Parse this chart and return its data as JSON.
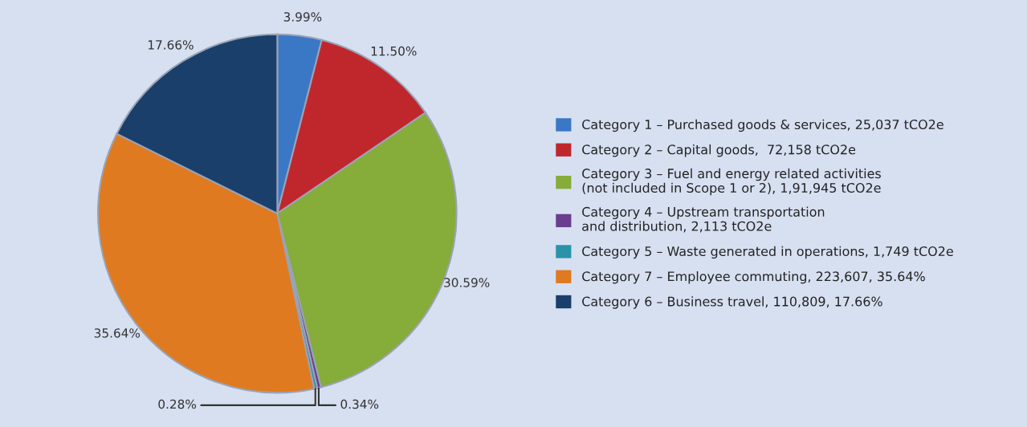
{
  "chart_data": {
    "type": "pie",
    "categories": [
      "Category 1 – Purchased goods & services, 25,037 tCO2e",
      "Category 2 – Capital goods,  72,158 tCO2e",
      "Category 3 – Fuel and energy related activities\n(not included in Scope 1 or 2), 1,91,945 tCO2e",
      "Category 4 – Upstream transportation\nand distribution, 2,113 tCO2e",
      "Category 5 – Waste generated in operations, 1,749 tCO2e",
      "Category 7 – Employee commuting, 223,607, 35.64%",
      "Category 6 – Business travel, 110,809, 17.66%"
    ],
    "values": [
      3.99,
      11.5,
      30.59,
      0.34,
      0.28,
      35.64,
      17.66
    ],
    "value_labels": [
      "3.99%",
      "11.50%",
      "30.59%",
      "0.34%",
      "0.28%",
      "35.64%",
      "17.66%"
    ],
    "colors": [
      "#3a78c6",
      "#c0272d",
      "#86ac3a",
      "#6a3d8e",
      "#2a93a8",
      "#e07a20",
      "#1b3f6b"
    ],
    "legend": "right"
  }
}
